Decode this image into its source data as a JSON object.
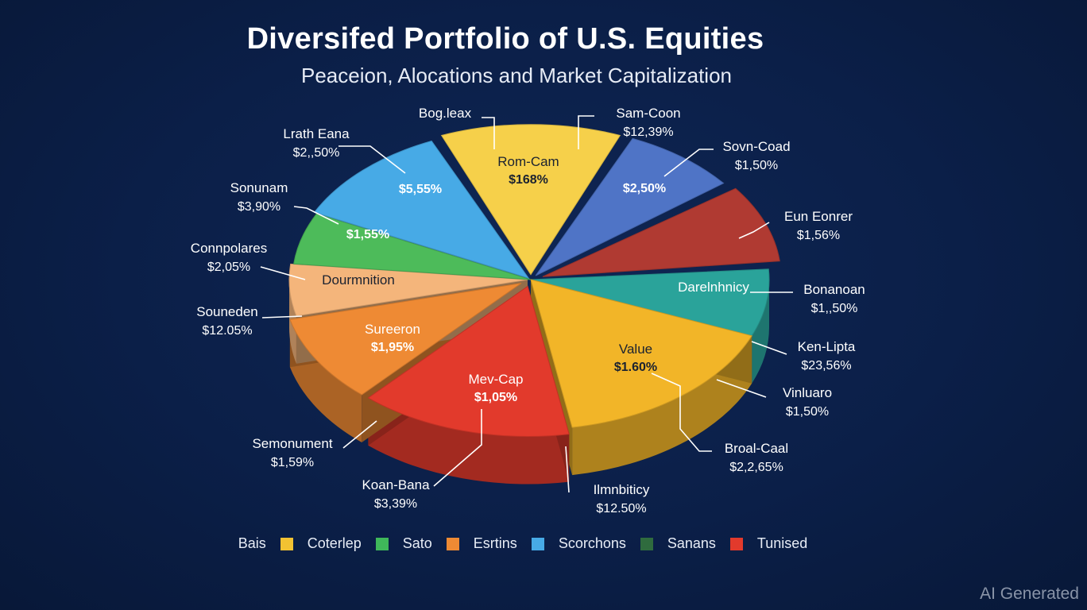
{
  "chart_data": {
    "type": "pie",
    "title": "Diversifed Portfolio of U.S. Equities",
    "subtitle": "Peaceion, Alocations and Market Capitalization",
    "slices": [
      {
        "label": "Rom-Cam",
        "value_label": "$168%",
        "color": "#f6d04a"
      },
      {
        "label": "",
        "value_label": "$2,50%",
        "color": "#4f74c6"
      },
      {
        "label": "",
        "value_label": "",
        "color": "#b03a32"
      },
      {
        "label": "Darelnhnicy",
        "value_label": "",
        "color": "#2aa39a"
      },
      {
        "label": "Value",
        "value_label": "$1.60%",
        "color": "#f2b528"
      },
      {
        "label": "Mev-Cap",
        "value_label": "$1,05%",
        "color": "#e23a2c"
      },
      {
        "label": "Sureeron",
        "value_label": "$1,95%",
        "color": "#ee8a34"
      },
      {
        "label": "Dourmnition",
        "value_label": "",
        "color": "#f4b57b"
      },
      {
        "label": "",
        "value_label": "$1,55%",
        "color": "#4dbb5a"
      },
      {
        "label": "",
        "value_label": "$5,55%",
        "color": "#47aae6"
      }
    ],
    "callouts": [
      {
        "name": "Bog.leax",
        "value": ""
      },
      {
        "name": "Sam-Coon",
        "value": "$12,39%"
      },
      {
        "name": "Sovn-Coad",
        "value": "$1,50%"
      },
      {
        "name": "Eun Eonrer",
        "value": "$1,56%"
      },
      {
        "name": "Bonanoan",
        "value": "$1,,50%"
      },
      {
        "name": "Ken-Lipta",
        "value": "$23,56%"
      },
      {
        "name": "Vinluaro",
        "value": "$1,50%"
      },
      {
        "name": "Broal-Caal",
        "value": "$2,2,65%"
      },
      {
        "name": "Ilmnbiticy",
        "value": "$12.50%"
      },
      {
        "name": "Koan-Bana",
        "value": "$3,39%"
      },
      {
        "name": "Semonument",
        "value": "$1,59%"
      },
      {
        "name": "Souneden",
        "value": "$12.05%"
      },
      {
        "name": "Connpolares",
        "value": "$2,05%"
      },
      {
        "name": "Sonunam",
        "value": "$3,90%"
      },
      {
        "name": "Lrath Eana",
        "value": "$2,,50%"
      }
    ],
    "legend_position": "bottom-center"
  },
  "legend": [
    {
      "label": "Bais",
      "color": "#f2c232"
    },
    {
      "label": "Coterlep",
      "color": "#3fb85a"
    },
    {
      "label": "Sato",
      "color": "#ee8a34"
    },
    {
      "label": "Esrtins",
      "color": "#47aae6"
    },
    {
      "label": "Scorchons",
      "color": "#2f6b3e"
    },
    {
      "label": "Sanans",
      "color": "#e23a2c"
    },
    {
      "label": "Tunised",
      "color": ""
    }
  ],
  "watermark": "AI Generated"
}
